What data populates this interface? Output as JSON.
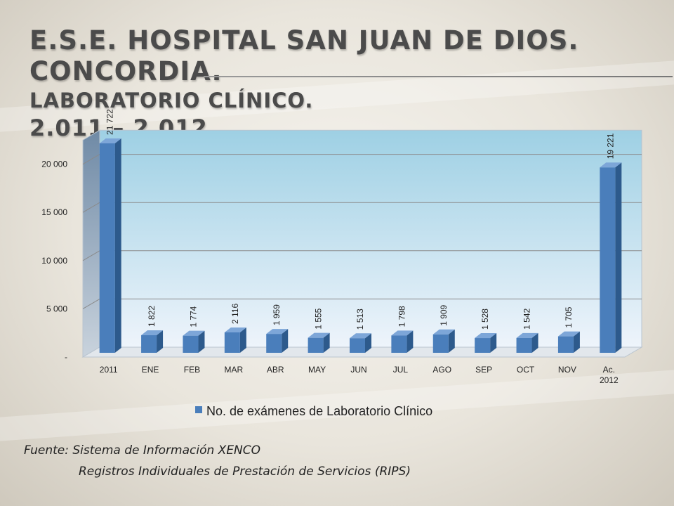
{
  "title": {
    "line1": "E.S.E. HOSPITAL SAN JUAN DE DIOS.  CONCORDIA.",
    "line2": "LABORATORIO CLÍNICO.",
    "line3": "2.011 – 2.012."
  },
  "source": {
    "line1": "Fuente: Sistema de Información XENCO",
    "line2": "Registros Individuales de Prestación de Servicios (RIPS)"
  },
  "colors": {
    "bar": "#4a7ebb",
    "bar_side": "#2d5a8c",
    "bar_top": "#7da6d8",
    "back_top": "#9ed0e4",
    "back_bottom": "#eef4fb"
  },
  "chart_data": {
    "type": "bar",
    "categories": [
      "2011",
      "ENE",
      "FEB",
      "MAR",
      "ABR",
      "MAY",
      "JUN",
      "JUL",
      "AGO",
      "SEP",
      "OCT",
      "NOV",
      "Ac. 2012"
    ],
    "series": [
      {
        "name": "No. de exámenes de Laboratorio Clínico",
        "values": [
          21722,
          1822,
          1774,
          2116,
          1959,
          1555,
          1513,
          1798,
          1909,
          1528,
          1542,
          1705,
          19221
        ],
        "labels": [
          "21 722",
          "1 822",
          "1 774",
          "2 116",
          "1 959",
          "1 555",
          "1 513",
          "1 798",
          "1 909",
          "1 528",
          "1 542",
          "1 705",
          "19 221"
        ]
      }
    ],
    "yticks": [
      "-",
      "5 000",
      "10 000",
      "15 000",
      "20 000"
    ],
    "ylim": [
      0,
      22500
    ],
    "grid": true,
    "legend_position": "bottom"
  }
}
